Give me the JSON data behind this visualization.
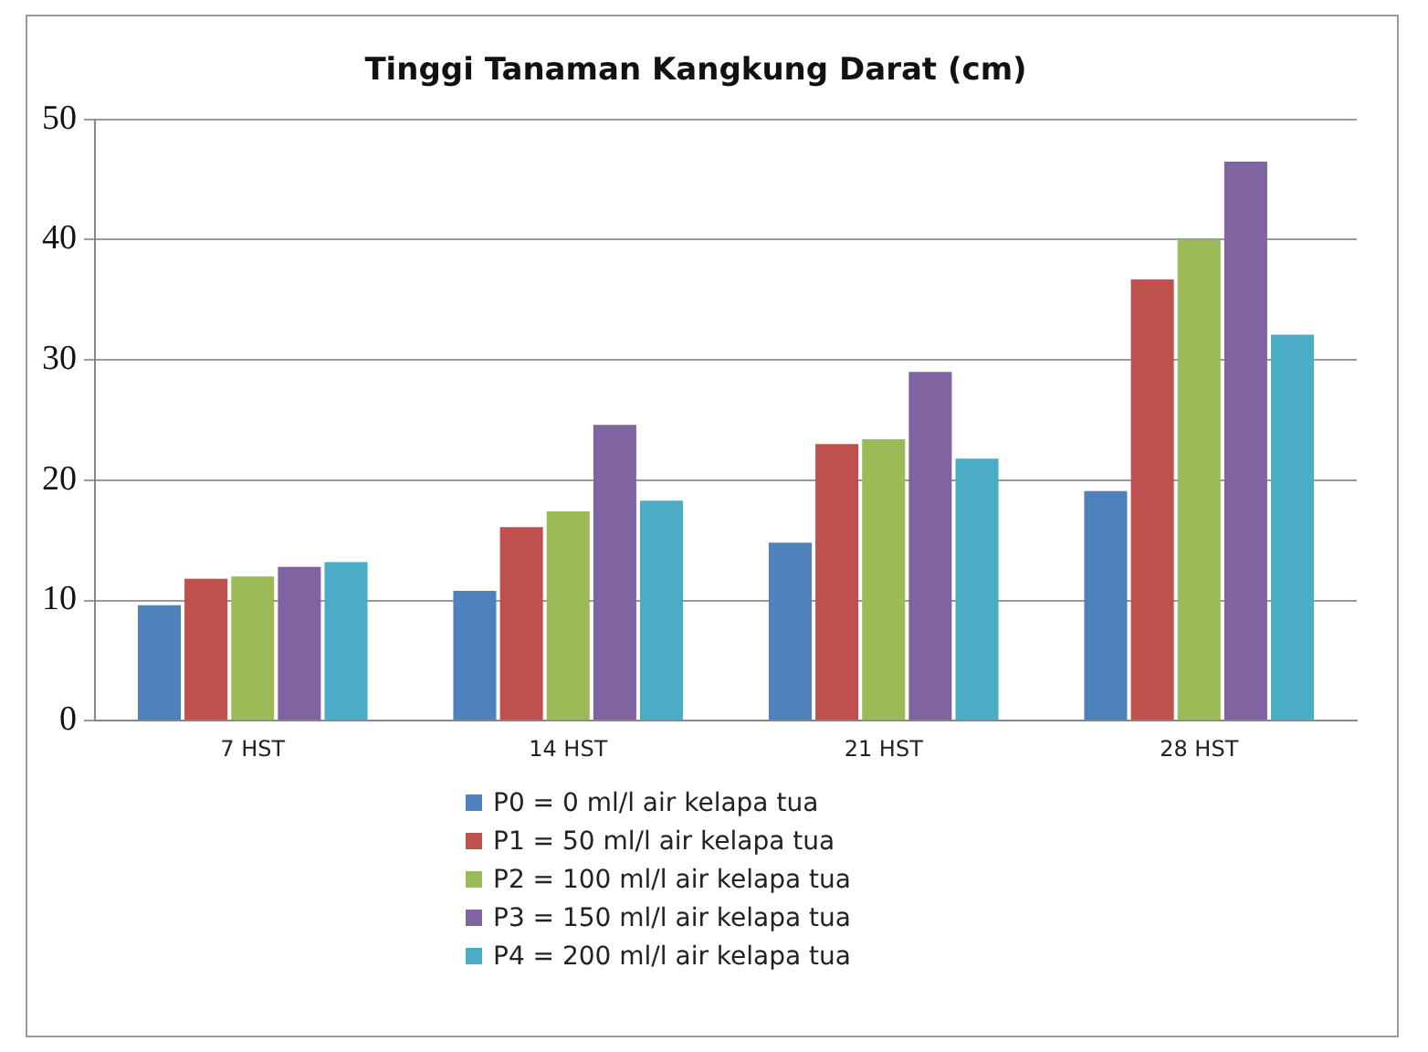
{
  "chart_data": {
    "type": "bar",
    "title": "Tinggi Tanaman Kangkung Darat (cm)",
    "categories": [
      "7 HST",
      "14 HST",
      "21 HST",
      "28 HST"
    ],
    "series": [
      {
        "name": "P0 = 0 ml/l air kelapa tua",
        "color": "#4f81bd",
        "values": [
          9.6,
          10.8,
          14.8,
          19.1
        ]
      },
      {
        "name": "P1 = 50 ml/l air kelapa tua",
        "color": "#c0504d",
        "values": [
          11.8,
          16.1,
          23.0,
          36.7
        ]
      },
      {
        "name": "P2 = 100 ml/l air kelapa tua",
        "color": "#9bbb59",
        "values": [
          12.0,
          17.4,
          23.4,
          40.0
        ]
      },
      {
        "name": "P3 = 150 ml/l air kelapa tua",
        "color": "#8064a2",
        "values": [
          12.8,
          24.6,
          29.0,
          46.5
        ]
      },
      {
        "name": "P4 = 200 ml/l air kelapa tua",
        "color": "#4bacc6",
        "values": [
          13.2,
          18.3,
          21.8,
          32.1
        ]
      }
    ],
    "ylim": [
      0,
      50
    ],
    "yticks": [
      0,
      10,
      20,
      30,
      40,
      50
    ],
    "grid": "y",
    "legend": "bottom"
  }
}
